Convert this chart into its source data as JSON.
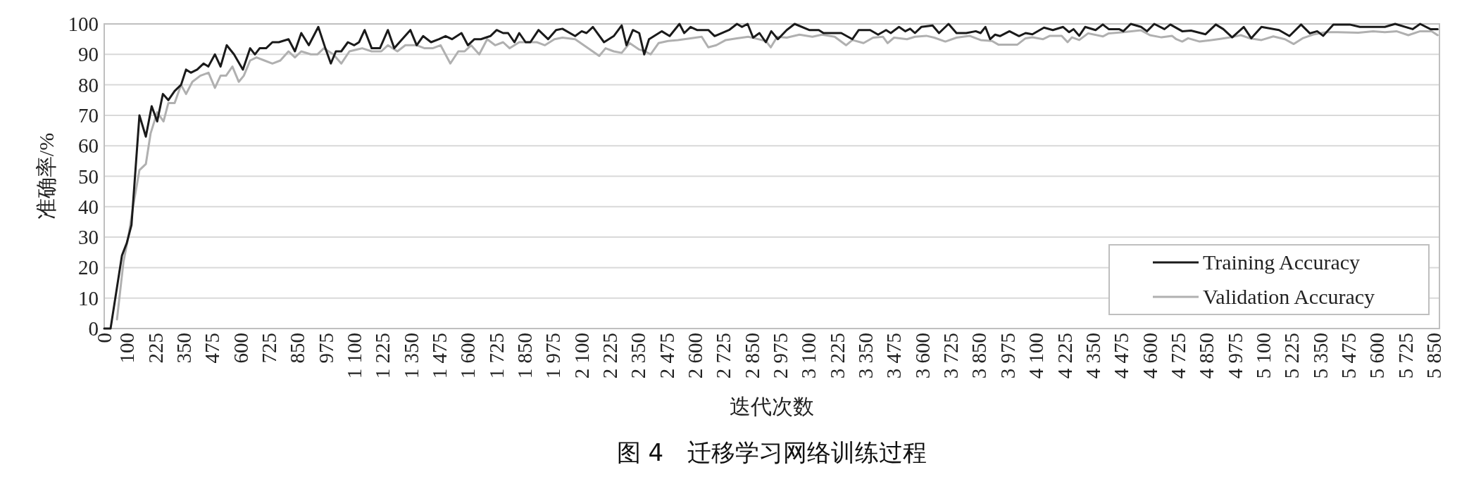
{
  "chart_data": {
    "type": "line",
    "title": "图 4　迁移学习网络训练过程",
    "xlabel": "迭代次数",
    "ylabel": "准确率/%",
    "xlim": [
      0,
      5875
    ],
    "ylim": [
      0,
      100
    ],
    "xticks": [
      0,
      100,
      225,
      350,
      475,
      600,
      725,
      850,
      975,
      {
        "value": 1100,
        "label": "1 100"
      },
      {
        "value": 1225,
        "label": "1 225"
      },
      {
        "value": 1350,
        "label": "1 350"
      },
      {
        "value": 1475,
        "label": "1 475"
      },
      {
        "value": 1600,
        "label": "1 600"
      },
      {
        "value": 1725,
        "label": "1 725"
      },
      {
        "value": 1850,
        "label": "1 850"
      },
      {
        "value": 1975,
        "label": "1 975"
      },
      {
        "value": 2100,
        "label": "2 100"
      },
      {
        "value": 2225,
        "label": "2 225"
      },
      {
        "value": 2350,
        "label": "2 350"
      },
      {
        "value": 2475,
        "label": "2 475"
      },
      {
        "value": 2600,
        "label": "2 600"
      },
      {
        "value": 2725,
        "label": "2 725"
      },
      {
        "value": 2850,
        "label": "2 850"
      },
      {
        "value": 2975,
        "label": "2 975"
      },
      {
        "value": 3100,
        "label": "3 100"
      },
      {
        "value": 3225,
        "label": "3 225"
      },
      {
        "value": 3350,
        "label": "3 350"
      },
      {
        "value": 3475,
        "label": "3 475"
      },
      {
        "value": 3600,
        "label": "3 600"
      },
      {
        "value": 3725,
        "label": "3 725"
      },
      {
        "value": 3850,
        "label": "3 850"
      },
      {
        "value": 3975,
        "label": "3 975"
      },
      {
        "value": 4100,
        "label": "4 100"
      },
      {
        "value": 4225,
        "label": "4 225"
      },
      {
        "value": 4350,
        "label": "4 350"
      },
      {
        "value": 4475,
        "label": "4 475"
      },
      {
        "value": 4600,
        "label": "4 600"
      },
      {
        "value": 4725,
        "label": "4 725"
      },
      {
        "value": 4850,
        "label": "4 850"
      },
      {
        "value": 4975,
        "label": "4 975"
      },
      {
        "value": 5100,
        "label": "5 100"
      },
      {
        "value": 5225,
        "label": "5 225"
      },
      {
        "value": 5350,
        "label": "5 350"
      },
      {
        "value": 5475,
        "label": "5 475"
      },
      {
        "value": 5600,
        "label": "5 600"
      },
      {
        "value": 5725,
        "label": "5 725"
      },
      {
        "value": 5850,
        "label": "5 850"
      }
    ],
    "yticks": [
      0,
      10,
      20,
      30,
      40,
      50,
      60,
      70,
      80,
      90,
      100
    ],
    "grid": "y",
    "legend": "bottom right",
    "line_style": "solid",
    "series": [
      {
        "name": "Training Accuracy",
        "color": "#1a1a1a",
        "x": [
          0,
          28,
          78,
          99,
          120,
          155,
          183,
          209,
          233,
          258,
          282,
          310,
          338,
          360,
          381,
          409,
          437,
          458,
          487,
          512,
          539,
          571,
          610,
          642,
          663,
          684,
          712,
          740,
          768,
          811,
          839,
          867,
          900,
          942,
          973,
          997,
          1019,
          1043,
          1072,
          1100,
          1121,
          1146,
          1177,
          1213,
          1248,
          1276,
          1311,
          1347,
          1375,
          1403,
          1438,
          1473,
          1502,
          1530,
          1572,
          1600,
          1629,
          1657,
          1699,
          1727,
          1755,
          1777,
          1805,
          1826,
          1854,
          1875,
          1911,
          1953,
          1988,
          2016,
          2072,
          2101,
          2122,
          2150,
          2199,
          2242,
          2277,
          2298,
          2326,
          2354,
          2376,
          2397,
          2453,
          2488,
          2531,
          2552,
          2580,
          2608,
          2658,
          2686,
          2749,
          2784,
          2806,
          2831,
          2855,
          2883,
          2911,
          2935,
          2964,
          3003,
          3038,
          3102,
          3144,
          3165,
          3193,
          3243,
          3292,
          3320,
          3370,
          3405,
          3440,
          3461,
          3497,
          3525,
          3546,
          3567,
          3595,
          3645,
          3673,
          3715,
          3750,
          3793,
          3835,
          3856,
          3877,
          3898,
          3920,
          3941,
          3983,
          4025,
          4054,
          4084,
          4135,
          4174,
          4219,
          4245,
          4265,
          4290,
          4316,
          4362,
          4394,
          4420,
          4465,
          4484,
          4517,
          4562,
          4588,
          4620,
          4665,
          4691,
          4743,
          4782,
          4846,
          4891,
          4924,
          4963,
          5014,
          5047,
          5092,
          5169,
          5215,
          5266,
          5305,
          5337,
          5363,
          5408,
          5480,
          5525,
          5635,
          5680,
          5757,
          5790,
          5835,
          5867
        ],
        "values": [
          0,
          0,
          24,
          28,
          34,
          70,
          63,
          73,
          68,
          77,
          75,
          78,
          80,
          85,
          84,
          85,
          87,
          86,
          90,
          86,
          93,
          90,
          85,
          92,
          90,
          92,
          92,
          94,
          94,
          95,
          91,
          97,
          93,
          99,
          92,
          87,
          91,
          91,
          94,
          93,
          94,
          98,
          92,
          92,
          98,
          92,
          95,
          98,
          93,
          96,
          94,
          95,
          96,
          95,
          97,
          93,
          95,
          95,
          96,
          98,
          97,
          97,
          94,
          97,
          94,
          94,
          98,
          95,
          98,
          98.4,
          96,
          97.6,
          97,
          99,
          94,
          96,
          99.5,
          93,
          98,
          97,
          90,
          95,
          97.6,
          96,
          100,
          97,
          99,
          98,
          98,
          96,
          98,
          100,
          99,
          100,
          95.5,
          97,
          94,
          97.6,
          95,
          98,
          100,
          98,
          98,
          97,
          97,
          97,
          95,
          98,
          98,
          96.5,
          98,
          97,
          99,
          97.6,
          98.4,
          97,
          99,
          99.5,
          97,
          100,
          97,
          97,
          97.6,
          97,
          99,
          95,
          96.5,
          96,
          97.6,
          96,
          97,
          96.6,
          98.8,
          98,
          99,
          97.3,
          98.3,
          96.1,
          99,
          98,
          99.8,
          98.3,
          98.3,
          97.6,
          100,
          99,
          97.6,
          100,
          98.3,
          99.8,
          97.6,
          97.8,
          96.6,
          99.8,
          98.3,
          95.6,
          99,
          95.3,
          99,
          98,
          96,
          99.8,
          96.9,
          97.6,
          96.1,
          99.8,
          99.8,
          99,
          99,
          100,
          98.3,
          100,
          98.3,
          98.3
        ]
      },
      {
        "name": "Validation Accuracy",
        "color": "#b0b0b0",
        "x": [
          56,
          85,
          106,
          127,
          155,
          183,
          204,
          233,
          261,
          282,
          310,
          338,
          360,
          388,
          423,
          459,
          487,
          512,
          536,
          564,
          592,
          614,
          642,
          670,
          705,
          740,
          775,
          811,
          839,
          867,
          909,
          938,
          966,
          1008,
          1043,
          1079,
          1135,
          1177,
          1219,
          1248,
          1290,
          1325,
          1375,
          1410,
          1445,
          1480,
          1523,
          1558,
          1586,
          1614,
          1650,
          1685,
          1720,
          1755,
          1784,
          1826,
          1868,
          1903,
          1939,
          1981,
          2016,
          2072,
          2129,
          2178,
          2206,
          2242,
          2277,
          2312,
          2354,
          2380,
          2404,
          2439,
          2481,
          2524,
          2580,
          2629,
          2658,
          2693,
          2735,
          2784,
          2834,
          2862,
          2911,
          2933,
          2961,
          3003,
          3059,
          3116,
          3158,
          3214,
          3264,
          3292,
          3341,
          3383,
          3426,
          3447,
          3475,
          3532,
          3567,
          3617,
          3652,
          3701,
          3750,
          3807,
          3856,
          3906,
          3934,
          4018,
          4054,
          4084,
          4131,
          4161,
          4213,
          4239,
          4258,
          4290,
          4329,
          4394,
          4420,
          4484,
          4562,
          4601,
          4652,
          4698,
          4717,
          4743,
          4769,
          4820,
          4872,
          4911,
          4956,
          5001,
          5040,
          5092,
          5144,
          5195,
          5234,
          5273,
          5324,
          5376,
          5428,
          5518,
          5583,
          5635,
          5686,
          5738,
          5790,
          5841,
          5867
        ],
        "values": [
          3,
          22,
          30,
          40,
          52,
          54,
          64,
          71,
          68,
          74,
          74,
          80,
          77,
          81,
          83,
          84,
          79,
          83,
          83,
          86,
          81,
          83,
          88,
          89,
          88,
          87,
          88,
          91,
          89,
          91,
          90,
          90,
          92,
          90,
          87,
          91,
          92,
          91,
          91,
          93,
          91,
          93,
          93,
          92,
          92,
          93,
          87,
          91,
          91,
          93,
          90,
          95,
          93,
          94,
          92,
          94,
          94,
          94,
          93,
          95,
          95.5,
          95,
          92,
          89.5,
          92,
          91,
          90.5,
          93.7,
          91.6,
          91,
          90,
          93.7,
          94.4,
          94.7,
          95.3,
          95.8,
          92.3,
          93,
          94.7,
          95.3,
          95.8,
          95.3,
          94.4,
          92.3,
          95.8,
          95.5,
          96.5,
          95.8,
          96.5,
          95.8,
          93,
          94.7,
          93.7,
          95.5,
          95.8,
          93.7,
          95.5,
          95,
          95.8,
          96.1,
          95.5,
          94.2,
          95.5,
          96.1,
          94.7,
          94.4,
          93.2,
          93.2,
          95.3,
          95.6,
          95,
          96.1,
          96.1,
          94,
          95.6,
          94.7,
          96.9,
          95.9,
          96.9,
          97.3,
          97.9,
          96.3,
          95.6,
          96.1,
          95,
          94.2,
          95.3,
          94.2,
          94.7,
          95.1,
          95.6,
          96.3,
          95.3,
          94.7,
          95.9,
          95,
          93.4,
          95.3,
          96.6,
          97.3,
          97.3,
          97.1,
          97.6,
          97.3,
          97.6,
          96.3,
          97.6,
          97.6,
          96.3
        ]
      }
    ]
  }
}
